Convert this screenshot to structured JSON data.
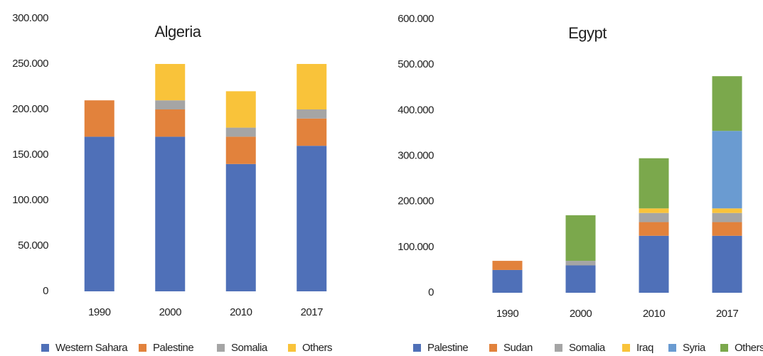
{
  "chart_data": [
    {
      "type": "stacked_bar",
      "title": "Algeria",
      "categories": [
        "1990",
        "2000",
        "2010",
        "2017"
      ],
      "series": [
        {
          "name": "Western Sahara",
          "color": "#4f70b8",
          "values": [
            170000,
            170000,
            140000,
            160000
          ]
        },
        {
          "name": "Palestine",
          "color": "#e2823c",
          "values": [
            40000,
            30000,
            30000,
            30000
          ]
        },
        {
          "name": "Somalia",
          "color": "#a5a5a5",
          "values": [
            0,
            10000,
            10000,
            10000
          ]
        },
        {
          "name": "Others",
          "color": "#f9c33a",
          "values": [
            0,
            40000,
            40000,
            50000
          ]
        }
      ],
      "ylim": [
        0,
        300000
      ],
      "yticks": [
        0,
        {
          "value": 50000,
          "label": "50.000"
        },
        {
          "value": 100000,
          "label": "100.000"
        },
        {
          "value": 150000,
          "label": "150.000"
        },
        {
          "value": 200000,
          "label": "200.000"
        },
        {
          "value": 250000,
          "label": "250.000"
        },
        {
          "value": 300000,
          "label": "300.000"
        }
      ],
      "grid": false
    },
    {
      "type": "stacked_bar",
      "title": "Egypt",
      "categories": [
        "1990",
        "2000",
        "2010",
        "2017"
      ],
      "series": [
        {
          "name": "Palestine",
          "color": "#4f70b8",
          "values": [
            50000,
            60000,
            125000,
            125000
          ]
        },
        {
          "name": "Sudan",
          "color": "#e2823c",
          "values": [
            20000,
            0,
            30000,
            30000
          ]
        },
        {
          "name": "Somalia",
          "color": "#a5a5a5",
          "values": [
            0,
            10000,
            20000,
            20000
          ]
        },
        {
          "name": "Iraq",
          "color": "#f9c33a",
          "values": [
            0,
            0,
            10000,
            10000
          ]
        },
        {
          "name": "Syria",
          "color": "#6a9bd1",
          "values": [
            0,
            0,
            0,
            170000
          ]
        },
        {
          "name": "Others",
          "color": "#7ba84c",
          "values": [
            0,
            100000,
            110000,
            120000
          ]
        }
      ],
      "ylim": [
        0,
        600000
      ],
      "yticks": [
        0,
        {
          "value": 100000,
          "label": "100.000"
        },
        {
          "value": 200000,
          "label": "200.000"
        },
        {
          "value": 300000,
          "label": "300.000"
        },
        {
          "value": 400000,
          "label": "400.000"
        },
        {
          "value": 500000,
          "label": "500.000"
        },
        {
          "value": 600000,
          "label": "600.000"
        }
      ],
      "grid": false
    }
  ]
}
